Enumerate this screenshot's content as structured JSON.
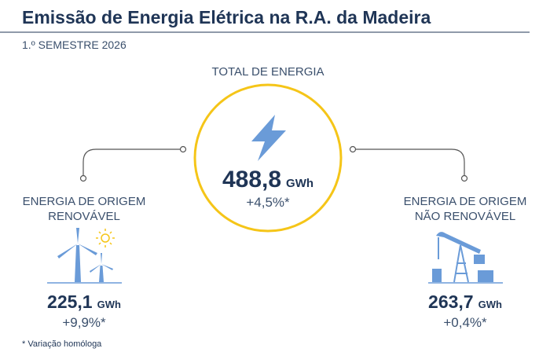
{
  "header": {
    "title": "Emissão de Energia Elétrica na R.A. da Madeira",
    "subtitle": "1.º SEMESTRE 2026"
  },
  "total": {
    "label": "TOTAL DE ENERGIA",
    "value": "488,8",
    "unit": "GWh",
    "change": "+4,5%*"
  },
  "renewable": {
    "label": [
      "ENERGIA DE ORIGEM",
      "RENOVÁVEL"
    ],
    "value": "225,1",
    "unit": "GWh",
    "change": "+9,9%*"
  },
  "non_renewable": {
    "label": [
      "ENERGIA DE ORIGEM",
      "NÃO RENOVÁVEL"
    ],
    "value": "263,7",
    "unit": "GWh",
    "change": "+0,4%*"
  },
  "footnote": "* Variação homóloga"
}
